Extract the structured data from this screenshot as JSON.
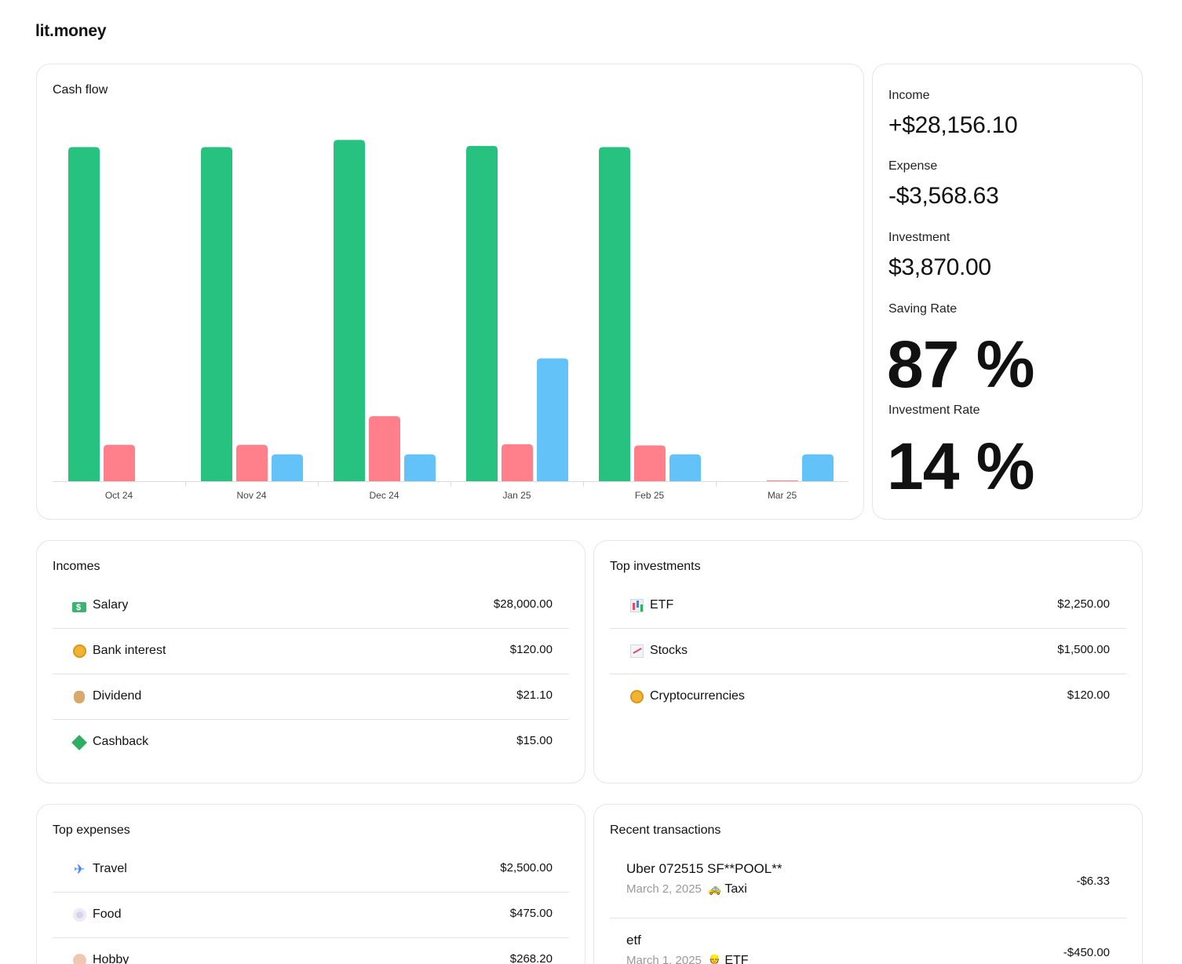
{
  "brand": "lit.money",
  "cashflow": {
    "title": "Cash flow"
  },
  "chart_data": {
    "type": "bar",
    "categories": [
      "Oct 24",
      "Nov 24",
      "Dec 24",
      "Jan 25",
      "Feb 25",
      "Mar 25"
    ],
    "series": [
      {
        "values": [
          5600,
          5600,
          5720,
          5620,
          5600,
          0
        ],
        "color": "#28c280"
      },
      {
        "values": [
          610,
          610,
          1090,
          620,
          600,
          5
        ],
        "color": "#ff808a"
      },
      {
        "values": [
          0,
          450,
          450,
          2060,
          450,
          450
        ],
        "color": "#63c3f9"
      }
    ],
    "ylim": [
      0,
      6000
    ],
    "grid": false,
    "legend": "none"
  },
  "summary": {
    "income_label": "Income",
    "income_value": "+$28,156.10",
    "expense_label": "Expense",
    "expense_value": "-$3,568.63",
    "investment_label": "Investment",
    "investment_value": "$3,870.00",
    "saving_rate_label": "Saving Rate",
    "saving_rate_value": "87 %",
    "investment_rate_label": "Investment Rate",
    "investment_rate_value": "14 %"
  },
  "incomes": {
    "title": "Incomes",
    "items": [
      {
        "icon": "dollar-bill-icon",
        "name": "Salary",
        "amount": "$28,000.00"
      },
      {
        "icon": "coin-icon",
        "name": "Bank interest",
        "amount": "$120.00"
      },
      {
        "icon": "money-bag-icon",
        "name": "Dividend",
        "amount": "$21.10"
      },
      {
        "icon": "money-wings-icon",
        "name": "Cashback",
        "amount": "$15.00"
      }
    ]
  },
  "investments": {
    "title": "Top investments",
    "items": [
      {
        "icon": "bar-chart-icon",
        "name": "ETF",
        "amount": "$2,250.00"
      },
      {
        "icon": "trend-chart-icon",
        "name": "Stocks",
        "amount": "$1,500.00"
      },
      {
        "icon": "coin-icon",
        "name": "Cryptocurrencies",
        "amount": "$120.00"
      }
    ]
  },
  "expenses": {
    "title": "Top expenses",
    "items": [
      {
        "icon": "airplane-icon",
        "name": "Travel",
        "amount": "$2,500.00"
      },
      {
        "icon": "plate-icon",
        "name": "Food",
        "amount": "$475.00"
      },
      {
        "icon": "palette-icon",
        "name": "Hobby",
        "amount": "$268.20"
      }
    ]
  },
  "transactions": {
    "title": "Recent transactions",
    "items": [
      {
        "title": "Uber 072515 SF**POOL**",
        "date": "March 2, 2025",
        "icon": "taxi-icon",
        "category": "Taxi",
        "amount": "-$6.33"
      },
      {
        "title": "etf",
        "date": "March 1, 2025",
        "icon": "investor-icon",
        "category": "ETF",
        "amount": "-$450.00"
      }
    ]
  }
}
